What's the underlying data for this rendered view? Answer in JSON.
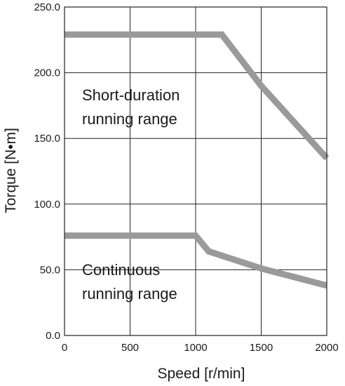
{
  "chart_data": {
    "type": "line",
    "xlabel": "Speed [r/min]",
    "ylabel": "Torque [N•m]",
    "xlim": [
      0,
      2000
    ],
    "ylim": [
      0,
      250
    ],
    "xticks": [
      0,
      500,
      1000,
      1500,
      2000
    ],
    "xtick_labels": [
      "0",
      "500",
      "1000",
      "1500",
      "2000"
    ],
    "yticks": [
      0,
      50,
      100,
      150,
      200,
      250
    ],
    "ytick_labels": [
      "0.0",
      "50.0",
      "100.0",
      "150.0",
      "200.0",
      "250.0"
    ],
    "grid": true,
    "legend": "none",
    "series": [
      {
        "x": [
          0,
          1200,
          1500,
          2000
        ],
        "y": [
          229,
          229,
          190,
          135
        ],
        "color": "#9a9a9a"
      },
      {
        "x": [
          0,
          1000,
          1100,
          1500,
          2000
        ],
        "y": [
          76,
          76,
          64,
          51,
          38
        ],
        "color": "#9a9a9a"
      }
    ],
    "annotations": [
      {
        "lines": [
          "Short-duration",
          "running range"
        ]
      },
      {
        "lines": [
          "Continuous",
          "running range"
        ]
      }
    ]
  }
}
